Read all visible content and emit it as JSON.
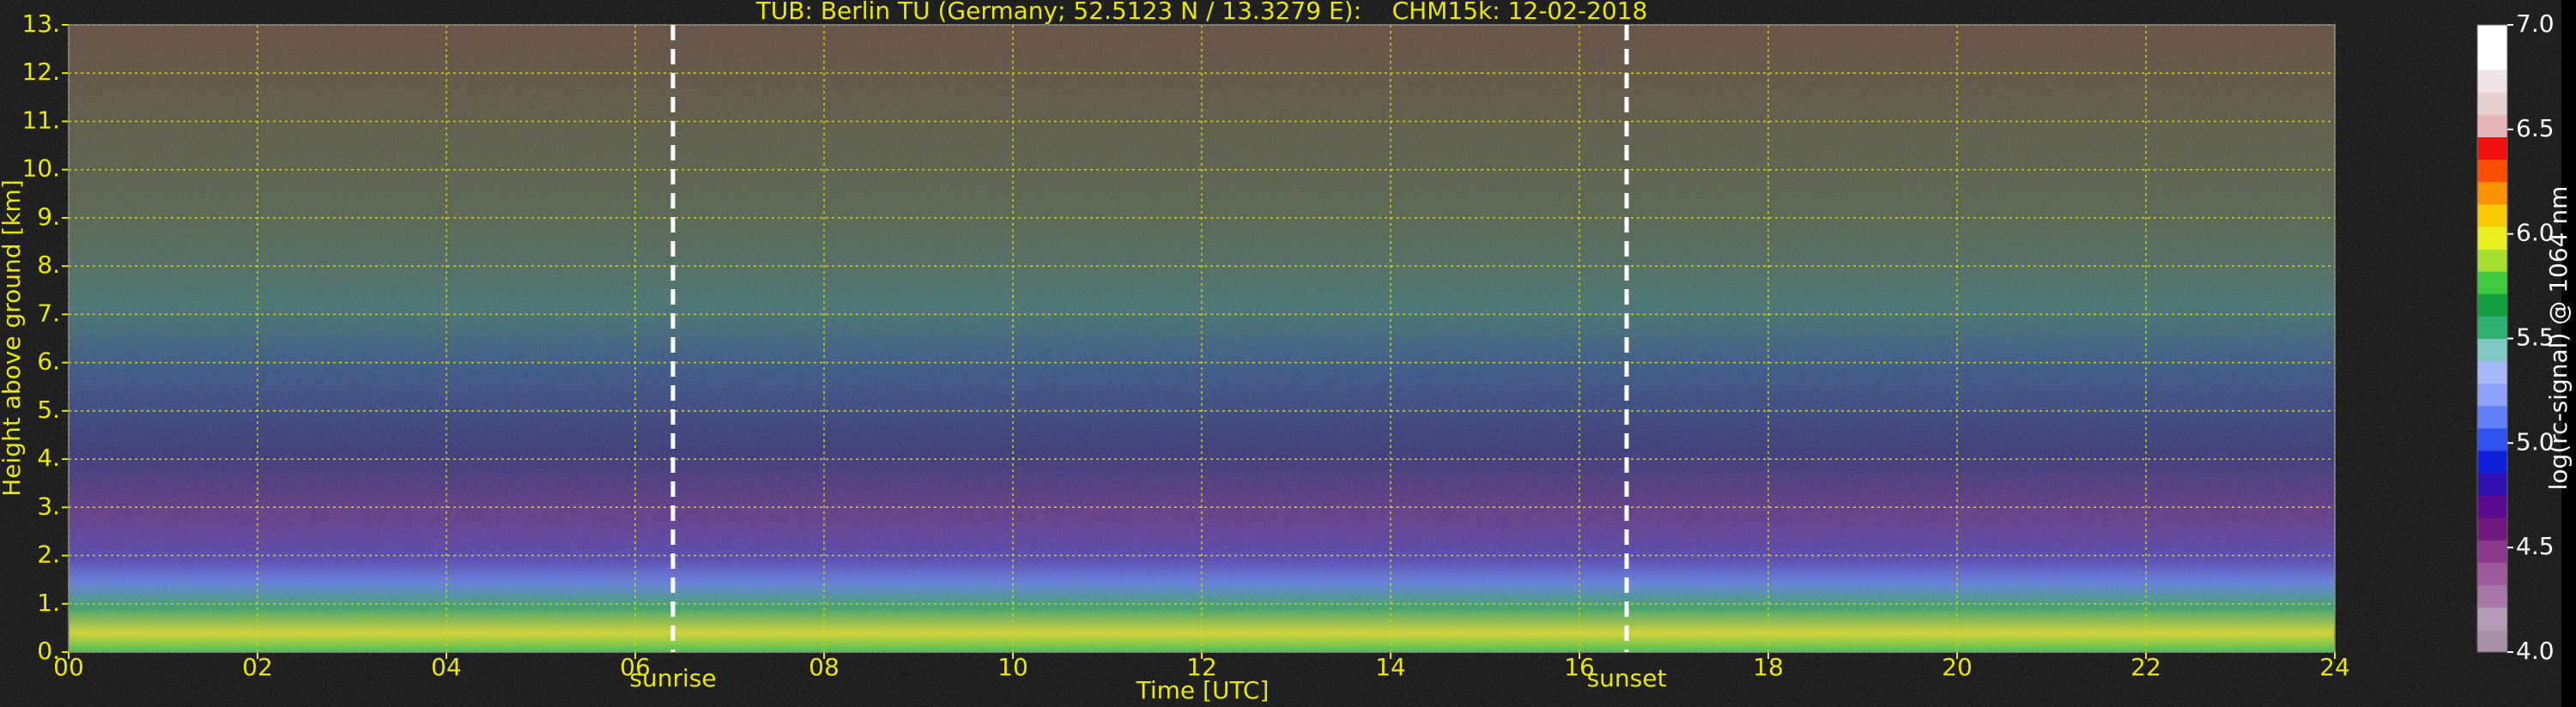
{
  "chart_data": {
    "type": "heatmap",
    "title": "TUB: Berlin TU (Germany; 52.5123 N / 13.3279 E):    CHM15k: 12-02-2018",
    "x_label": "Time [UTC]",
    "y_label": "Height above ground [km]",
    "xlim": [
      0,
      24
    ],
    "xticks": [
      {
        "value": 0,
        "label": "00"
      },
      {
        "value": 2,
        "label": "02"
      },
      {
        "value": 4,
        "label": "04"
      },
      {
        "value": 6,
        "label": "06"
      },
      {
        "value": 8,
        "label": "08"
      },
      {
        "value": 10,
        "label": "10"
      },
      {
        "value": 12,
        "label": "12"
      },
      {
        "value": 14,
        "label": "14"
      },
      {
        "value": 16,
        "label": "16"
      },
      {
        "value": 18,
        "label": "18"
      },
      {
        "value": 20,
        "label": "20"
      },
      {
        "value": 22,
        "label": "22"
      },
      {
        "value": 24,
        "label": "24"
      }
    ],
    "ylim": [
      0,
      13
    ],
    "yticks": [
      {
        "value": 0,
        "label": "0."
      },
      {
        "value": 1,
        "label": "1."
      },
      {
        "value": 2,
        "label": "2."
      },
      {
        "value": 3,
        "label": "3."
      },
      {
        "value": 4,
        "label": "4."
      },
      {
        "value": 5,
        "label": "5."
      },
      {
        "value": 6,
        "label": "6."
      },
      {
        "value": 7,
        "label": "7."
      },
      {
        "value": 8,
        "label": "8."
      },
      {
        "value": 9,
        "label": "9."
      },
      {
        "value": 10,
        "label": "10."
      },
      {
        "value": 11,
        "label": "11."
      },
      {
        "value": 12,
        "label": "12."
      },
      {
        "value": 13,
        "label": "13."
      }
    ],
    "grid": true,
    "grid_color": "#d8d800",
    "text_color": "#e8e800",
    "events": [
      {
        "x": 6.4,
        "label": "sunrise"
      },
      {
        "x": 16.5,
        "label": "sunset"
      }
    ],
    "colorbar": {
      "label": "log(rc-signal) @ 1064 nm",
      "lim": [
        4,
        7
      ],
      "ticks": [
        {
          "value": 4,
          "label": "4.0"
        },
        {
          "value": 4.5,
          "label": "4.5"
        },
        {
          "value": 5,
          "label": "5.0"
        },
        {
          "value": 5.5,
          "label": "5.5"
        },
        {
          "value": 6,
          "label": "6.0"
        },
        {
          "value": 6.5,
          "label": "6.5"
        },
        {
          "value": 7,
          "label": "7.0"
        }
      ],
      "colors": [
        "#a890a8",
        "#b49ab4",
        "#a878a8",
        "#9a5a9a",
        "#8a3a8a",
        "#701a80",
        "#5a0a90",
        "#3010b0",
        "#1020d8",
        "#3050f0",
        "#6080f8",
        "#8aa0f8",
        "#a8b8f8",
        "#80c8c8",
        "#30b070",
        "#10a040",
        "#40c840",
        "#a8e030",
        "#e8f020",
        "#f8c800",
        "#f89000",
        "#f85000",
        "#f01010",
        "#e8b8b8",
        "#e8d0d0",
        "#f0e4e8",
        "#ffffff",
        "#ffffff"
      ]
    }
  }
}
